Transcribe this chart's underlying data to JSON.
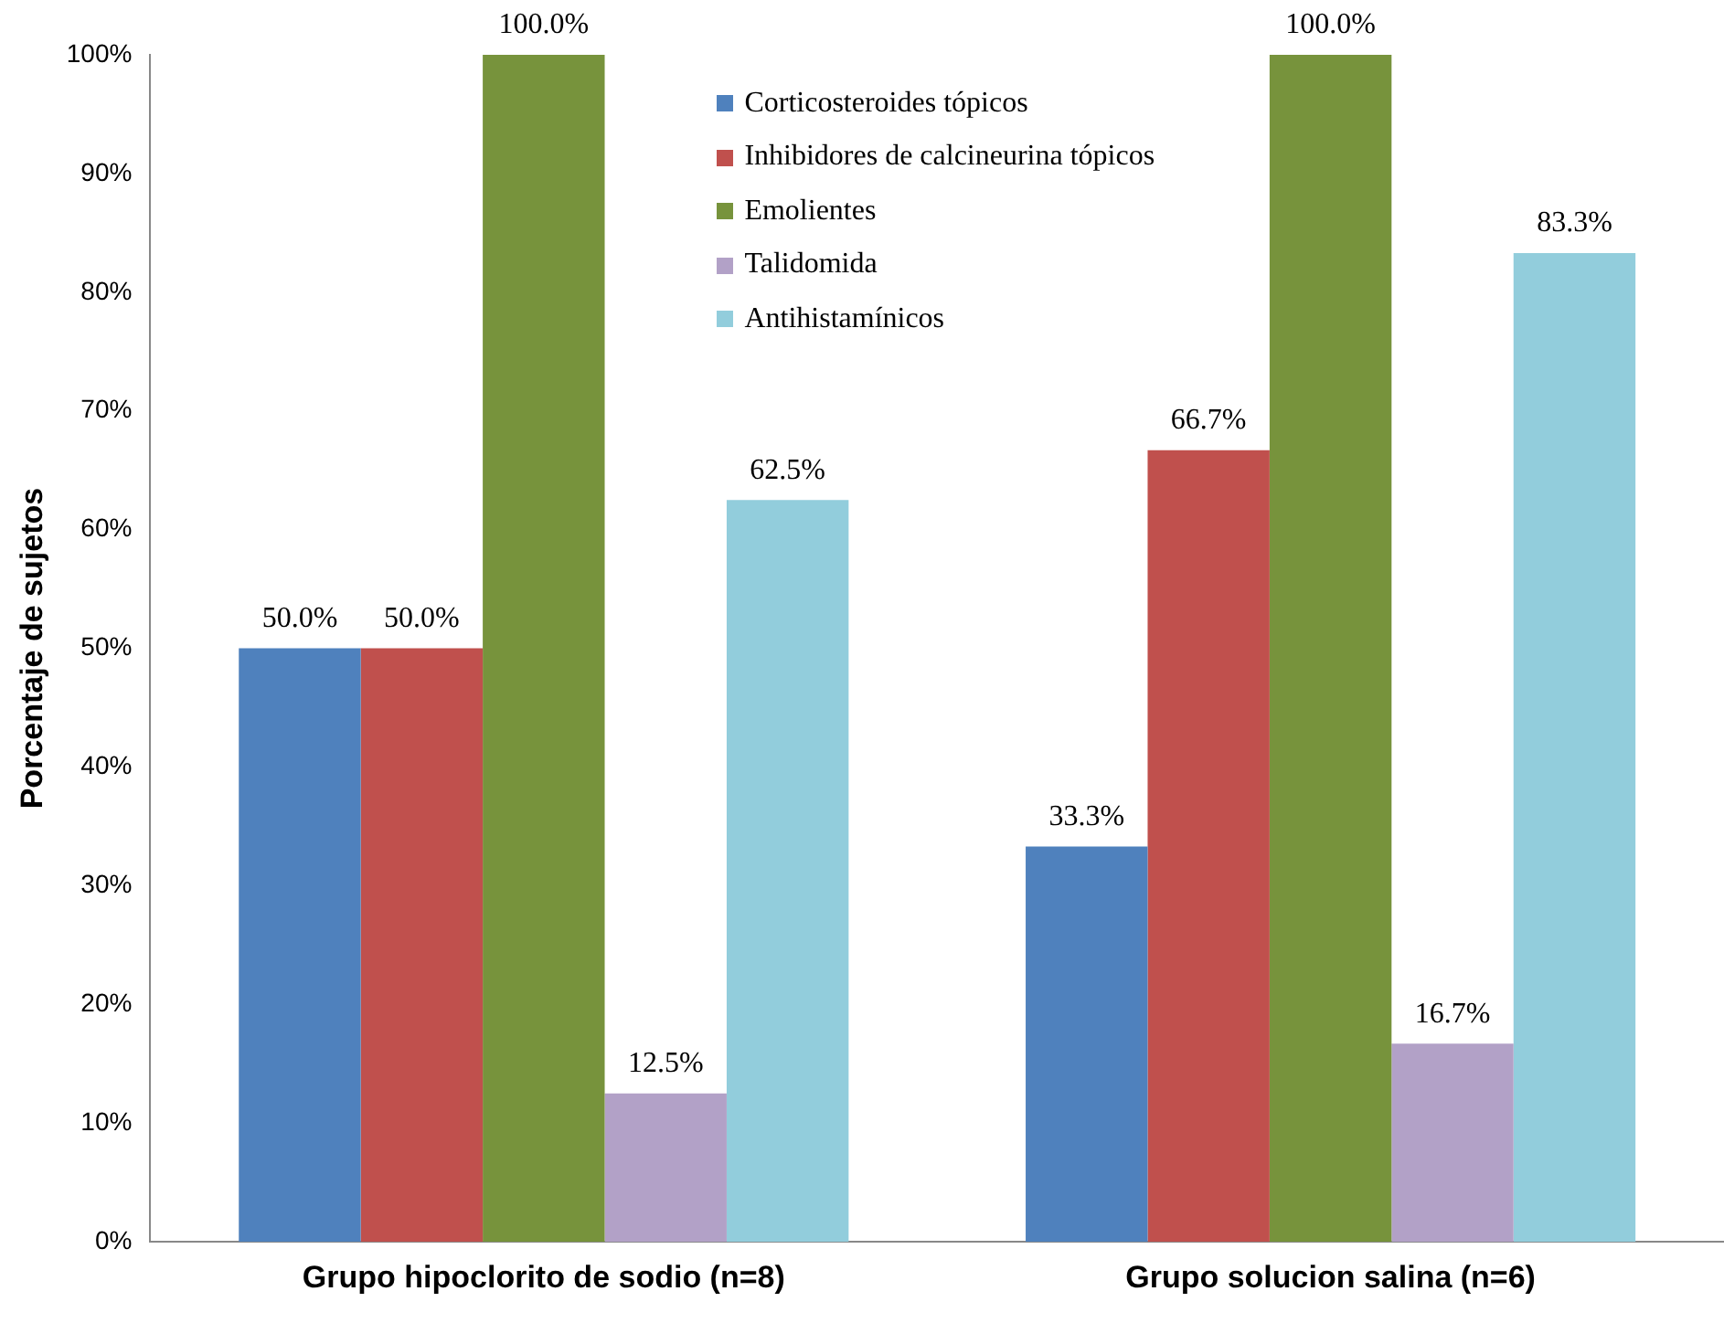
{
  "chart_data": {
    "type": "bar",
    "ylabel": "Porcentaje de sujetos",
    "categories": [
      "Grupo hipoclorito de sodio (n=8)",
      "Grupo solucion salina (n=6)"
    ],
    "series": [
      {
        "name": "Corticosteroides tópicos",
        "color": "#4f81bd",
        "values": [
          50.0,
          33.3
        ],
        "value_labels": [
          "50.0%",
          "33.3%"
        ]
      },
      {
        "name": "Inhibidores de calcineurina tópicos",
        "color": "#c0504d",
        "values": [
          50.0,
          66.7
        ],
        "value_labels": [
          "50.0%",
          "66.7%"
        ]
      },
      {
        "name": "Emolientes",
        "color": "#77933c",
        "values": [
          100.0,
          100.0
        ],
        "value_labels": [
          "100.0%",
          "100.0%"
        ]
      },
      {
        "name": "Talidomida",
        "color": "#b2a1c7",
        "values": [
          12.5,
          16.7
        ],
        "value_labels": [
          "12.5%",
          "16.7%"
        ]
      },
      {
        "name": "Antihistamínicos",
        "color": "#92cddc",
        "values": [
          62.5,
          83.3
        ],
        "value_labels": [
          "62.5%",
          "83.3%"
        ]
      }
    ],
    "ylim": [
      0,
      100
    ],
    "yticks": [
      {
        "value": 0,
        "label": "0%"
      },
      {
        "value": 10,
        "label": "10%"
      },
      {
        "value": 20,
        "label": "20%"
      },
      {
        "value": 30,
        "label": "30%"
      },
      {
        "value": 40,
        "label": "40%"
      },
      {
        "value": 50,
        "label": "50%"
      },
      {
        "value": 60,
        "label": "60%"
      },
      {
        "value": 70,
        "label": "70%"
      },
      {
        "value": 80,
        "label": "80%"
      },
      {
        "value": 90,
        "label": "90%"
      },
      {
        "value": 100,
        "label": "100%"
      }
    ],
    "grid": false,
    "legend": "top"
  }
}
